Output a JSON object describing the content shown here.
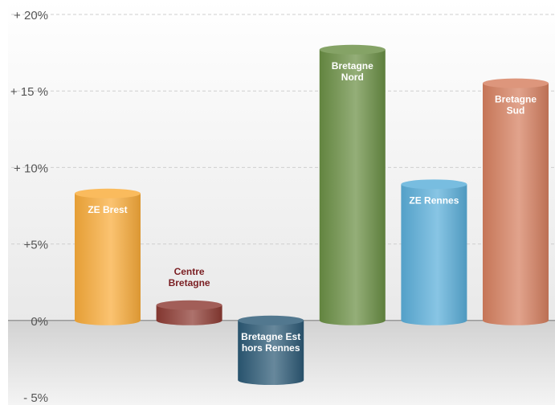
{
  "chart_data": {
    "type": "bar",
    "style": "3d-cylinder",
    "title": "",
    "xlabel": "",
    "ylabel": "",
    "ylim": [
      -5,
      20
    ],
    "yticks": [
      {
        "value": 20,
        "label": "+ 20%"
      },
      {
        "value": 15,
        "label": "+ 15 %"
      },
      {
        "value": 10,
        "label": "+ 10%"
      },
      {
        "value": 5,
        "label": "+5%"
      },
      {
        "value": 0,
        "label": "0%"
      },
      {
        "value": -5,
        "label": "- 5%"
      }
    ],
    "grid": true,
    "categories": [
      {
        "lines": [
          "ZE Brest"
        ],
        "value": 8.3,
        "color": "#f9ac3a",
        "label_color": "#ffffff",
        "label_pos": "inside"
      },
      {
        "lines": [
          "Centre",
          "Bretagne"
        ],
        "value": 1.0,
        "color": "#8d3b33",
        "label_color": "#7a1e22",
        "label_pos": "above"
      },
      {
        "lines": [
          "Bretagne Est",
          "hors Rennes"
        ],
        "value": -3.9,
        "color": "#2c5a76",
        "label_color": "#ffffff",
        "label_pos": "inside"
      },
      {
        "lines": [
          "Bretagne",
          "Nord"
        ],
        "value": 17.7,
        "color": "#6a8f44",
        "label_color": "#ffffff",
        "label_pos": "inside"
      },
      {
        "lines": [
          "ZE Rennes"
        ],
        "value": 8.9,
        "color": "#5aaed9",
        "label_color": "#ffffff",
        "label_pos": "inside"
      },
      {
        "lines": [
          "Bretagne",
          "Sud"
        ],
        "value": 15.5,
        "color": "#d67f5f",
        "label_color": "#ffffff",
        "label_pos": "inside"
      }
    ]
  }
}
